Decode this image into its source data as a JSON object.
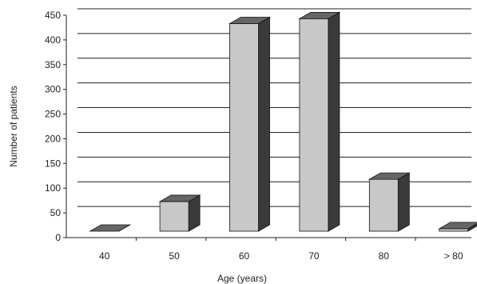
{
  "chart_data": {
    "type": "bar",
    "title": "",
    "xlabel": "Age (years)",
    "ylabel": "Number of patients",
    "categories": [
      "40",
      "50",
      "60",
      "70",
      "80",
      "> 80"
    ],
    "values": [
      0,
      60,
      420,
      430,
      105,
      5
    ],
    "ylim": [
      0,
      450
    ],
    "yticks": [
      "0",
      "50",
      "100",
      "150",
      "200",
      "250",
      "300",
      "350",
      "400",
      "450"
    ],
    "grid": true,
    "legend": "none",
    "style": "3d",
    "colors": {
      "bar_front": "#c8c8c8",
      "bar_top": "#666666",
      "bar_side": "#3a3a3a",
      "grid": "#222222"
    }
  }
}
